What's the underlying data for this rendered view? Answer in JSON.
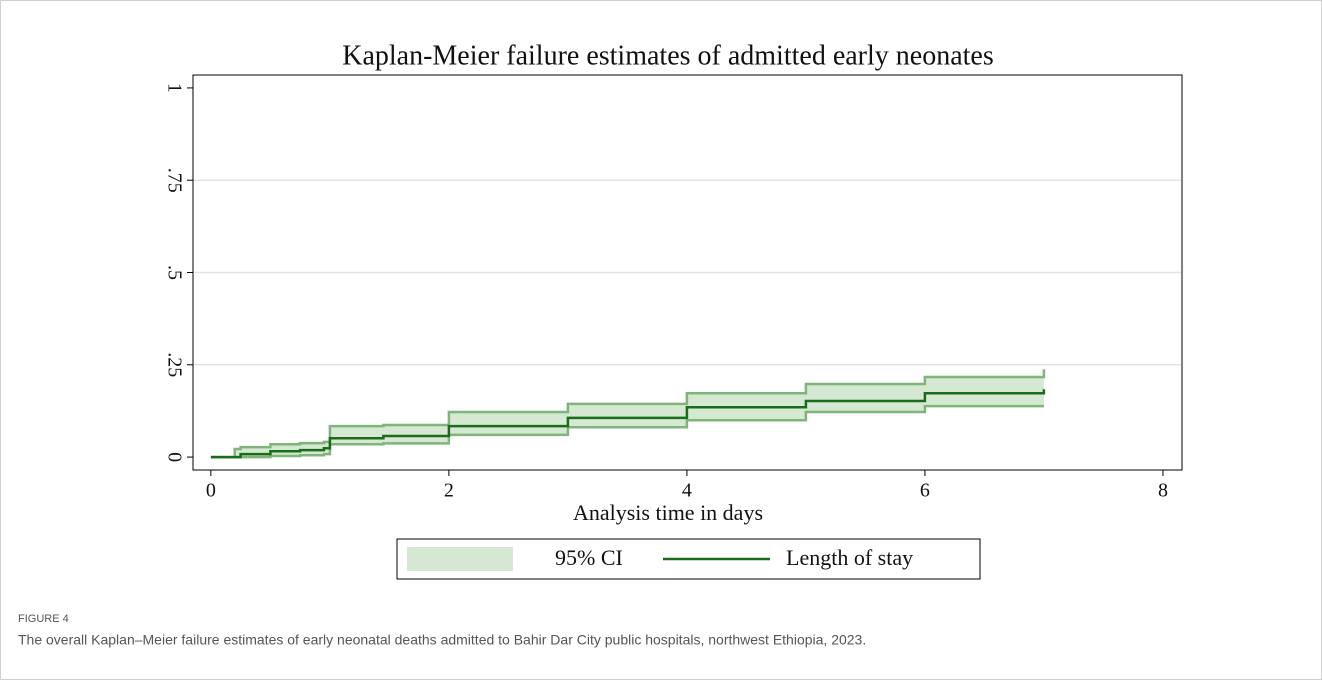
{
  "chart_data": {
    "type": "step",
    "title": "Kaplan-Meier failure estimates of admitted early neonates",
    "x_label": "Analysis time in days",
    "x": [
      0,
      0.2,
      0.25,
      0.5,
      0.75,
      0.95,
      1,
      1.45,
      2,
      3,
      4,
      5,
      6,
      7
    ],
    "series": [
      {
        "name": "Length of stay",
        "color": "#1a6b1a",
        "values": [
          0,
          0,
          0.008,
          0.016,
          0.019,
          0.024,
          0.051,
          0.057,
          0.084,
          0.106,
          0.135,
          0.152,
          0.173,
          0.184
        ]
      }
    ],
    "ci": {
      "name": "95% CI",
      "fill": "#d5e8d2",
      "color": "#7fb47a",
      "lower": [
        0,
        0,
        0,
        0.003,
        0.005,
        0.008,
        0.035,
        0.037,
        0.06,
        0.081,
        0.1,
        0.122,
        0.138,
        0.138
      ],
      "upper": [
        0,
        0.022,
        0.027,
        0.035,
        0.038,
        0.041,
        0.084,
        0.087,
        0.122,
        0.144,
        0.173,
        0.198,
        0.217,
        0.238
      ]
    },
    "xlim": [
      -0.15,
      8.16
    ],
    "xticks": [
      0,
      2,
      4,
      6,
      8
    ],
    "ylim": [
      -0.035,
      1.035
    ],
    "yticks": [
      0,
      {
        "value": 0.25,
        "label": ".25"
      },
      {
        "value": 0.5,
        "label": ".5"
      },
      {
        "value": 0.75,
        "label": ".75"
      },
      1
    ],
    "grid": true,
    "legend": "bottom"
  },
  "figure_label": "FIGURE 4",
  "caption": "The overall Kaplan–Meier failure estimates of early neonatal deaths admitted to Bahir Dar City public hospitals, northwest Ethiopia, 2023."
}
